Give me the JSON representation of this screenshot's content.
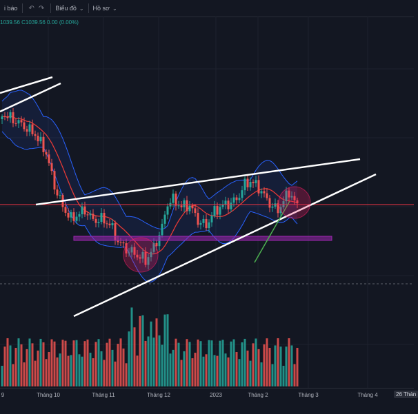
{
  "toolbar": {
    "report_label": "i báo",
    "undo_icon": "undo-icon",
    "redo_icon": "redo-icon",
    "chart_label": "Biểu đồ",
    "profile_label": "Hồ sơ"
  },
  "legend": {
    "text": "1039.56  C1039.56  0.00 (0.00%)"
  },
  "x_axis": {
    "labels": [
      "9",
      "Tháng 10",
      "Tháng 11",
      "Tháng 12",
      "2023",
      "Tháng 2",
      "Tháng 3",
      "Tháng 4"
    ],
    "cursor_label": "26 Thán"
  },
  "colors": {
    "background": "#131722",
    "up": "#26a69a",
    "down": "#ef5350",
    "bollinger": "#2962ff",
    "ma": "#e53935",
    "trendline": "#ffffff",
    "horizontal_line": "#f23645",
    "support_zone": "#9c27b0",
    "green_line": "#4caf50",
    "circle_fill": "#e91e63"
  }
}
